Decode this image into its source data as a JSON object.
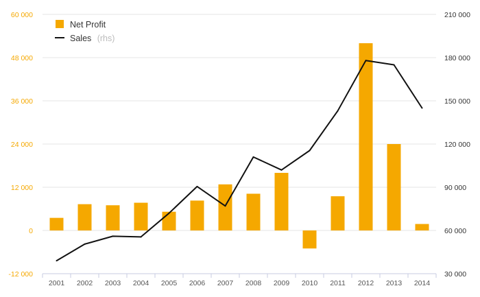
{
  "chart_data": {
    "type": "bar",
    "title": "",
    "xlabel": "",
    "categories": [
      "2001",
      "2002",
      "2003",
      "2004",
      "2005",
      "2006",
      "2007",
      "2008",
      "2009",
      "2010",
      "2011",
      "2012",
      "2013",
      "2014"
    ],
    "series": [
      {
        "name": "Net Profit",
        "type": "bar",
        "axis": "left",
        "color": "#f5a800",
        "values": [
          3500,
          7300,
          7000,
          7700,
          5200,
          8300,
          12800,
          10200,
          16000,
          -5000,
          9500,
          52000,
          24000,
          1800
        ]
      },
      {
        "name": "Sales",
        "name_suffix": "(rhs)",
        "type": "line",
        "axis": "right",
        "color": "#111111",
        "values": [
          39000,
          50500,
          56000,
          55500,
          72000,
          90500,
          77000,
          111000,
          102000,
          115500,
          143000,
          178000,
          175000,
          145000
        ]
      }
    ],
    "y_left": {
      "min": -12000,
      "max": 60000,
      "ticks": [
        -12000,
        0,
        12000,
        24000,
        36000,
        48000,
        60000
      ],
      "tick_labels": [
        "-12 000",
        "0",
        "12 000",
        "24 000",
        "36 000",
        "48 000",
        "60 000"
      ]
    },
    "y_right": {
      "min": 30000,
      "max": 210000,
      "ticks": [
        30000,
        60000,
        90000,
        120000,
        150000,
        180000,
        210000
      ],
      "tick_labels": [
        "30 000",
        "60 000",
        "90 000",
        "120 000",
        "150 000",
        "180 000",
        "210 000"
      ]
    },
    "grid": true,
    "legend": "top-left"
  },
  "colors": {
    "bar": "#f5a800",
    "line": "#111111",
    "grid": "#e4e4e4",
    "left_axis_text": "#f5a800",
    "right_axis_text": "#333333",
    "x_axis_text": "#555555",
    "x_axis_line": "#c7cbe0"
  }
}
